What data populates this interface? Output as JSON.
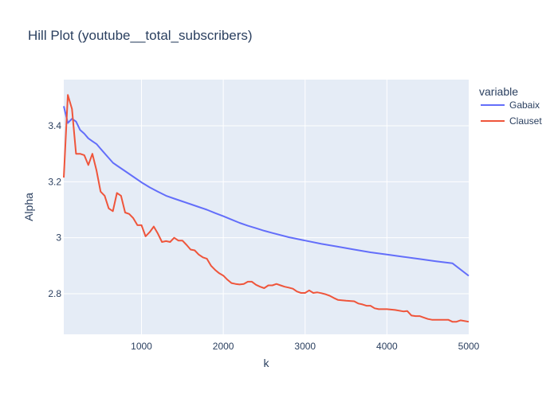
{
  "chart_data": {
    "type": "line",
    "title": "Hill Plot (youtube__total_subscribers)",
    "xlabel": "k",
    "ylabel": "Alpha",
    "xlim": [
      50,
      5000
    ],
    "ylim": [
      2.655,
      3.565
    ],
    "x_ticks": [
      1000,
      2000,
      3000,
      4000,
      5000
    ],
    "x_tick_labels": [
      "1000",
      "2000",
      "3000",
      "4000",
      "5000"
    ],
    "y_ticks": [
      2.8,
      3.0,
      3.2,
      3.4
    ],
    "y_tick_labels": [
      "2.8",
      "3",
      "3.2",
      "3.4"
    ],
    "grid": true,
    "plot_bgcolor": "#e5ecf6",
    "legend": {
      "title": "variable",
      "placement": "right"
    },
    "series": [
      {
        "name": "Gabaix",
        "color": "#636efa",
        "points": [
          [
            50,
            3.47
          ],
          [
            100,
            3.41
          ],
          [
            150,
            3.425
          ],
          [
            200,
            3.415
          ],
          [
            250,
            3.385
          ],
          [
            300,
            3.372
          ],
          [
            350,
            3.355
          ],
          [
            400,
            3.345
          ],
          [
            450,
            3.335
          ],
          [
            500,
            3.318
          ],
          [
            600,
            3.285
          ],
          [
            650,
            3.268
          ],
          [
            700,
            3.258
          ],
          [
            800,
            3.238
          ],
          [
            900,
            3.218
          ],
          [
            1000,
            3.198
          ],
          [
            1100,
            3.18
          ],
          [
            1200,
            3.165
          ],
          [
            1300,
            3.15
          ],
          [
            1400,
            3.14
          ],
          [
            1500,
            3.13
          ],
          [
            1600,
            3.12
          ],
          [
            1700,
            3.11
          ],
          [
            1800,
            3.1
          ],
          [
            1900,
            3.088
          ],
          [
            2000,
            3.077
          ],
          [
            2100,
            3.065
          ],
          [
            2200,
            3.053
          ],
          [
            2300,
            3.043
          ],
          [
            2400,
            3.034
          ],
          [
            2500,
            3.025
          ],
          [
            2600,
            3.017
          ],
          [
            2800,
            3.002
          ],
          [
            3000,
            2.99
          ],
          [
            3200,
            2.978
          ],
          [
            3400,
            2.968
          ],
          [
            3600,
            2.958
          ],
          [
            3800,
            2.948
          ],
          [
            4000,
            2.94
          ],
          [
            4200,
            2.932
          ],
          [
            4400,
            2.924
          ],
          [
            4600,
            2.916
          ],
          [
            4800,
            2.909
          ],
          [
            5000,
            2.864
          ]
        ]
      },
      {
        "name": "Clauset",
        "color": "#ef553b",
        "points": [
          [
            50,
            3.215
          ],
          [
            100,
            3.51
          ],
          [
            150,
            3.46
          ],
          [
            200,
            3.3
          ],
          [
            250,
            3.3
          ],
          [
            300,
            3.295
          ],
          [
            350,
            3.26
          ],
          [
            400,
            3.3
          ],
          [
            450,
            3.24
          ],
          [
            500,
            3.165
          ],
          [
            550,
            3.15
          ],
          [
            600,
            3.105
          ],
          [
            650,
            3.095
          ],
          [
            700,
            3.16
          ],
          [
            750,
            3.15
          ],
          [
            800,
            3.09
          ],
          [
            850,
            3.085
          ],
          [
            900,
            3.07
          ],
          [
            950,
            3.045
          ],
          [
            1000,
            3.045
          ],
          [
            1050,
            3.005
          ],
          [
            1100,
            3.02
          ],
          [
            1150,
            3.04
          ],
          [
            1200,
            3.015
          ],
          [
            1250,
            2.985
          ],
          [
            1300,
            2.988
          ],
          [
            1350,
            2.985
          ],
          [
            1400,
            3.0
          ],
          [
            1450,
            2.99
          ],
          [
            1500,
            2.99
          ],
          [
            1550,
            2.975
          ],
          [
            1600,
            2.958
          ],
          [
            1650,
            2.955
          ],
          [
            1700,
            2.94
          ],
          [
            1750,
            2.93
          ],
          [
            1800,
            2.925
          ],
          [
            1850,
            2.9
          ],
          [
            1900,
            2.885
          ],
          [
            1950,
            2.873
          ],
          [
            2000,
            2.865
          ],
          [
            2050,
            2.85
          ],
          [
            2100,
            2.838
          ],
          [
            2150,
            2.835
          ],
          [
            2200,
            2.833
          ],
          [
            2250,
            2.835
          ],
          [
            2300,
            2.843
          ],
          [
            2350,
            2.843
          ],
          [
            2400,
            2.832
          ],
          [
            2450,
            2.825
          ],
          [
            2500,
            2.82
          ],
          [
            2550,
            2.83
          ],
          [
            2600,
            2.83
          ],
          [
            2650,
            2.835
          ],
          [
            2700,
            2.83
          ],
          [
            2750,
            2.825
          ],
          [
            2800,
            2.822
          ],
          [
            2850,
            2.818
          ],
          [
            2900,
            2.808
          ],
          [
            2950,
            2.803
          ],
          [
            3000,
            2.803
          ],
          [
            3050,
            2.812
          ],
          [
            3100,
            2.803
          ],
          [
            3150,
            2.805
          ],
          [
            3200,
            2.802
          ],
          [
            3250,
            2.798
          ],
          [
            3300,
            2.793
          ],
          [
            3350,
            2.785
          ],
          [
            3400,
            2.778
          ],
          [
            3500,
            2.775
          ],
          [
            3600,
            2.773
          ],
          [
            3650,
            2.765
          ],
          [
            3700,
            2.762
          ],
          [
            3750,
            2.757
          ],
          [
            3800,
            2.757
          ],
          [
            3850,
            2.748
          ],
          [
            3900,
            2.745
          ],
          [
            4000,
            2.745
          ],
          [
            4100,
            2.742
          ],
          [
            4200,
            2.737
          ],
          [
            4250,
            2.738
          ],
          [
            4300,
            2.722
          ],
          [
            4350,
            2.72
          ],
          [
            4400,
            2.72
          ],
          [
            4450,
            2.715
          ],
          [
            4500,
            2.71
          ],
          [
            4550,
            2.707
          ],
          [
            4600,
            2.707
          ],
          [
            4650,
            2.707
          ],
          [
            4700,
            2.707
          ],
          [
            4750,
            2.707
          ],
          [
            4800,
            2.7
          ],
          [
            4850,
            2.7
          ],
          [
            4900,
            2.705
          ],
          [
            5000,
            2.7
          ]
        ]
      }
    ]
  }
}
